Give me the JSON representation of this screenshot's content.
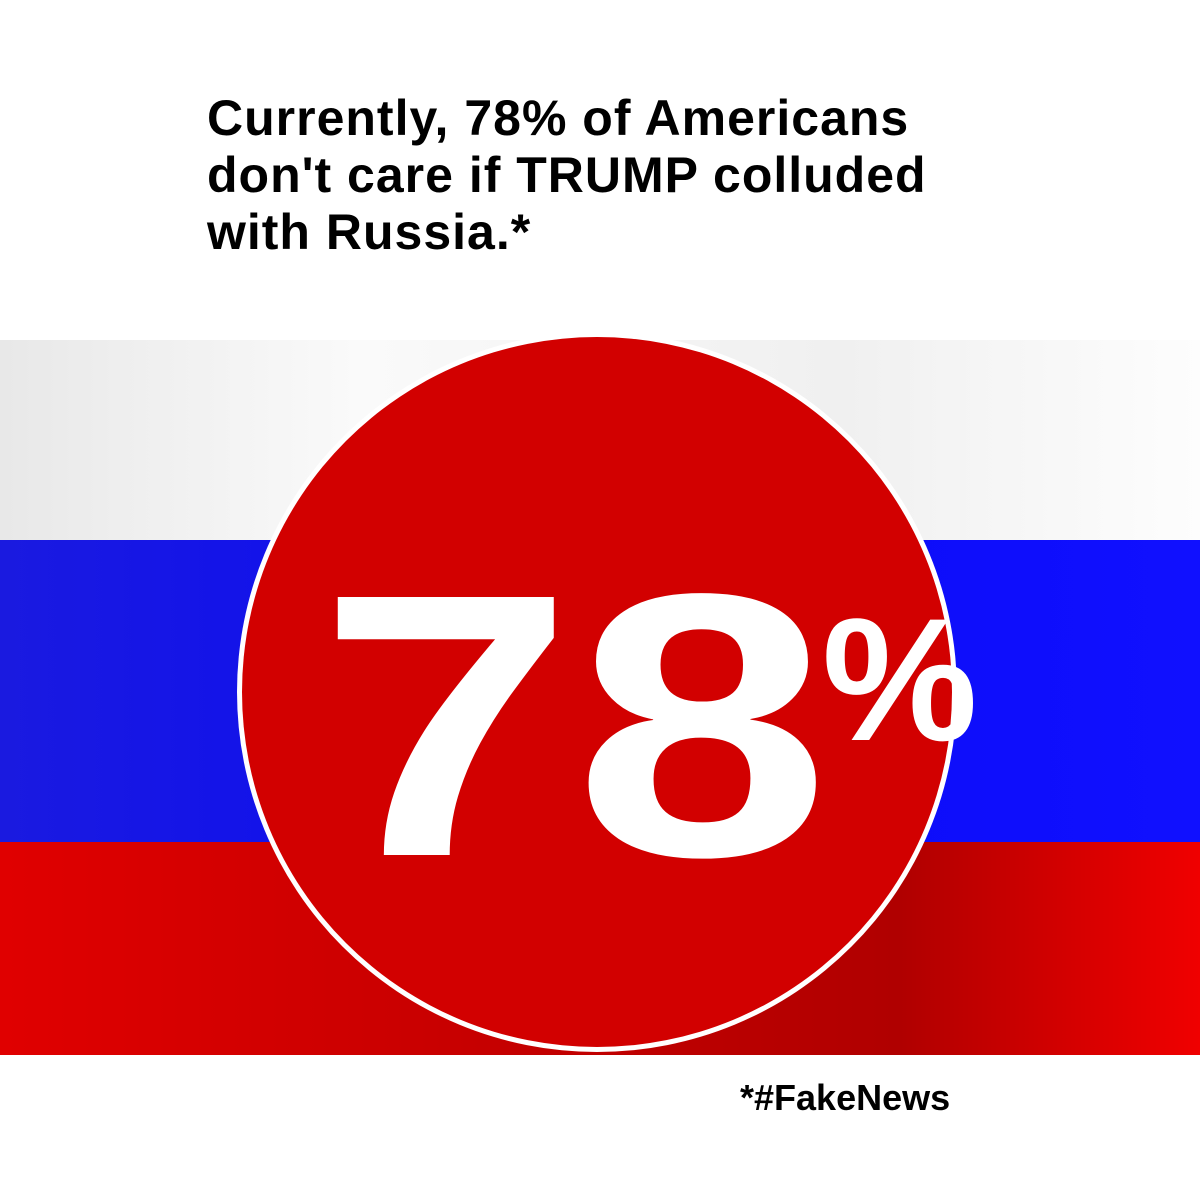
{
  "headline": {
    "lines": [
      "Currently, 78% of Americans",
      "don't care if TRUMP colluded",
      "with Russia.*"
    ]
  },
  "badge": {
    "number": "78",
    "unit": "%"
  },
  "footnote": "*#FakeNews"
}
